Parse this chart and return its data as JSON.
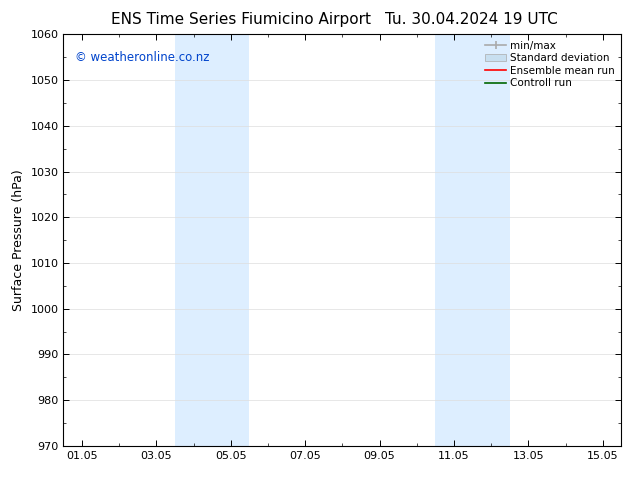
{
  "title": "ENS Time Series Fiumicino Airport",
  "title_right": "Tu. 30.04.2024 19 UTC",
  "ylabel": "Surface Pressure (hPa)",
  "ylim": [
    970,
    1060
  ],
  "yticks": [
    970,
    980,
    990,
    1000,
    1010,
    1020,
    1030,
    1040,
    1050,
    1060
  ],
  "xtick_labels": [
    "01.05",
    "03.05",
    "05.05",
    "07.05",
    "09.05",
    "11.05",
    "13.05",
    "15.05"
  ],
  "xtick_positions": [
    1,
    3,
    5,
    7,
    9,
    11,
    13,
    15
  ],
  "xlim": [
    0.5,
    15.5
  ],
  "shaded_bands": [
    {
      "x_start": 3.5,
      "x_end": 5.5,
      "color": "#ddeeff"
    },
    {
      "x_start": 10.5,
      "x_end": 12.5,
      "color": "#ddeeff"
    }
  ],
  "watermark": "© weatheronline.co.nz",
  "watermark_color": "#0044cc",
  "legend_entries": [
    {
      "label": "min/max",
      "color": "#aaaaaa",
      "lw": 1.2,
      "ls": "-"
    },
    {
      "label": "Standard deviation",
      "color": "#c8dff0",
      "lw": 7,
      "ls": "-"
    },
    {
      "label": "Ensemble mean run",
      "color": "#ff0000",
      "lw": 1.2,
      "ls": "-"
    },
    {
      "label": "Controll run",
      "color": "#006600",
      "lw": 1.2,
      "ls": "-"
    }
  ],
  "bg_color": "#ffffff",
  "grid_color": "#dddddd",
  "axis_label_fontsize": 9,
  "tick_fontsize": 8,
  "title_fontsize": 11
}
